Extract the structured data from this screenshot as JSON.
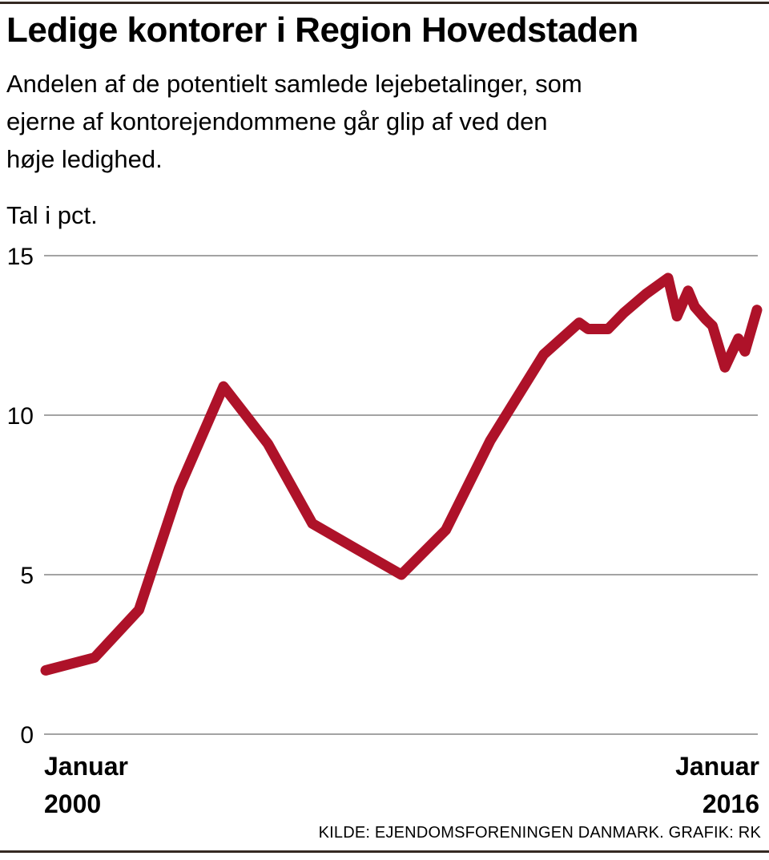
{
  "header": {
    "title": "Ledige kontorer i Region Hovedstaden",
    "subtitle_lines": [
      "Andelen af de potentielt samlede lejebetalinger, som",
      "ejerne af kontorejendommene går glip af ved den",
      "høje ledighed."
    ]
  },
  "chart_data": {
    "type": "line",
    "title": "Ledige kontorer i Region Hovedstaden",
    "subtitle": "Andelen af de potentielt samlede lejebetalinger, som ejerne af kontorejendommene går glip af ved den høje ledighed.",
    "unit_label": "Tal i pct.",
    "ylim": [
      0,
      15
    ],
    "yticks": [
      0,
      5,
      10,
      15
    ],
    "grid": true,
    "gridline_color": "#a3a3a3",
    "x_range_years": [
      2000,
      2016
    ],
    "x_axis_labels": {
      "start": [
        "Januar",
        "2000"
      ],
      "end": [
        "Januar",
        "2016"
      ]
    },
    "series": [
      {
        "color": "#ae1229",
        "points": [
          [
            2000.0,
            2.0
          ],
          [
            2001.1,
            2.4
          ],
          [
            2002.1,
            3.9
          ],
          [
            2003.0,
            7.7
          ],
          [
            2004.0,
            10.9
          ],
          [
            2004.5,
            10.0
          ],
          [
            2005.0,
            9.1
          ],
          [
            2006.0,
            6.6
          ],
          [
            2007.0,
            5.8
          ],
          [
            2008.0,
            5.0
          ],
          [
            2009.0,
            6.4
          ],
          [
            2010.0,
            9.2
          ],
          [
            2011.2,
            11.9
          ],
          [
            2012.0,
            12.9
          ],
          [
            2012.2,
            12.7
          ],
          [
            2012.65,
            12.7
          ],
          [
            2013.0,
            13.2
          ],
          [
            2013.5,
            13.8
          ],
          [
            2014.0,
            14.3
          ],
          [
            2014.2,
            13.1
          ],
          [
            2014.45,
            13.9
          ],
          [
            2014.6,
            13.4
          ],
          [
            2014.85,
            13.0
          ],
          [
            2015.0,
            12.8
          ],
          [
            2015.28,
            11.5
          ],
          [
            2015.58,
            12.4
          ],
          [
            2015.73,
            12.0
          ],
          [
            2016.0,
            13.3
          ]
        ]
      }
    ]
  },
  "footer": {
    "source": "KILDE: EJENDOMSFORENINGEN DANMARK. GRAFIK: RK"
  }
}
